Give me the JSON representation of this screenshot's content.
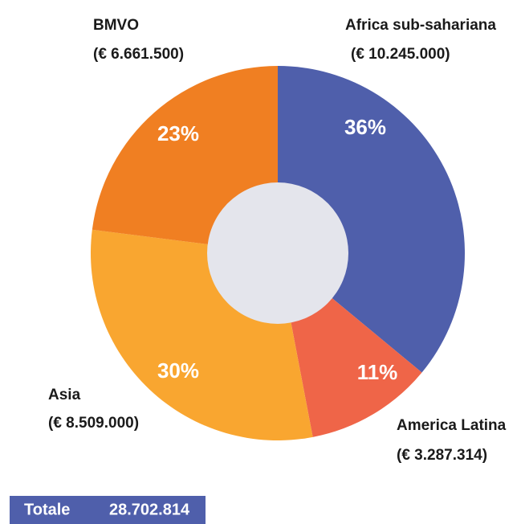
{
  "chart_data": {
    "type": "donut",
    "categories": [
      "Africa sub-sahariana",
      "America Latina",
      "Asia",
      "BMVO"
    ],
    "amounts": [
      "(€ 10.245.000)",
      "(€ 3.287.314)",
      "(€ 8.509.000)",
      "(€ 6.661.500)"
    ],
    "values": [
      36,
      11,
      30,
      23
    ],
    "value_labels": [
      "36%",
      "11%",
      "30%",
      "23%"
    ],
    "colors": [
      "#4f5fab",
      "#ef6548",
      "#f9a630",
      "#f07f22"
    ],
    "hole_color": "#e4e5ec",
    "total": {
      "label": "Totale",
      "value": "28.702.814"
    }
  }
}
